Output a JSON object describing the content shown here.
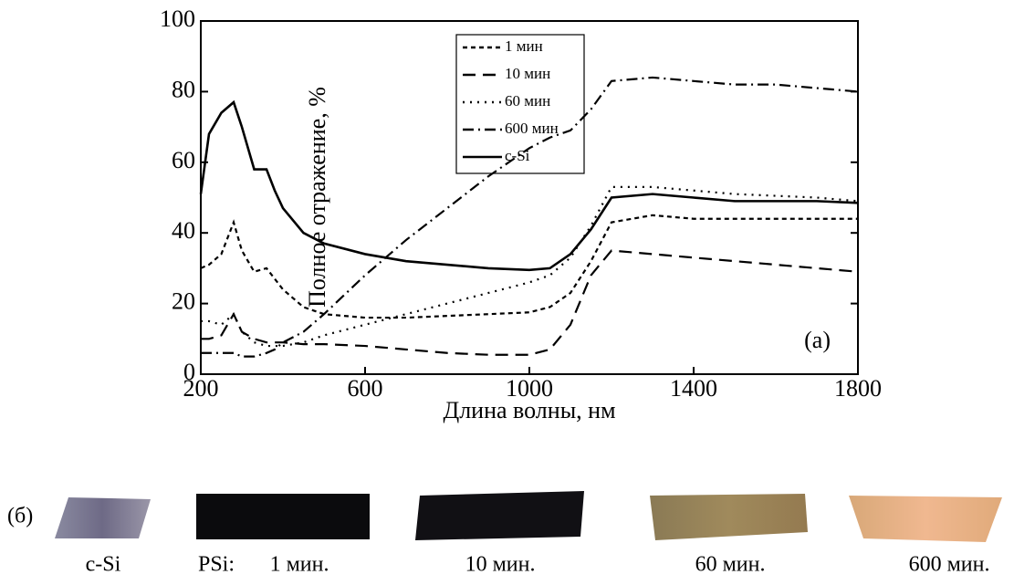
{
  "chart_data": {
    "type": "line",
    "y_label": "Полное отражение, %",
    "x_label": "Длина волны, нм",
    "annotation": "(a)",
    "xlim": [
      200,
      1800
    ],
    "xticks": [
      200,
      600,
      1000,
      1400,
      1800
    ],
    "ylim": [
      0,
      100
    ],
    "yticks": [
      0,
      20,
      40,
      60,
      80,
      100
    ],
    "legend": "top-center",
    "x": [
      200,
      220,
      250,
      280,
      300,
      330,
      360,
      380,
      400,
      450,
      500,
      600,
      700,
      800,
      900,
      1000,
      1050,
      1100,
      1150,
      1200,
      1300,
      1400,
      1500,
      1600,
      1700,
      1800
    ],
    "series": [
      {
        "name": "1 мин",
        "color": "#000000",
        "values": [
          30,
          31,
          34,
          43,
          35,
          29,
          30,
          27,
          24,
          19,
          17,
          16,
          16,
          16.5,
          17,
          17.5,
          19,
          23,
          32,
          43,
          45,
          44,
          44,
          44,
          44,
          44
        ]
      },
      {
        "name": "10 мин",
        "color": "#000000",
        "values": [
          10,
          10,
          11,
          17,
          12,
          10,
          9,
          9,
          9,
          8.5,
          8.5,
          8,
          7,
          6,
          5.5,
          5.5,
          7,
          14,
          28,
          35,
          34,
          33,
          32,
          31,
          30,
          29
        ]
      },
      {
        "name": "60 мин",
        "color": "#000000",
        "values": [
          15,
          15,
          14,
          17,
          12,
          9,
          8,
          8,
          8,
          9,
          11,
          14,
          17,
          20,
          23,
          26,
          28,
          33,
          42,
          53,
          53,
          52,
          51,
          50.5,
          50,
          49
        ]
      },
      {
        "name": "600 мин",
        "color": "#000000",
        "values": [
          6,
          6,
          6,
          6,
          5,
          5,
          6,
          7,
          9,
          12,
          17,
          28,
          38,
          47,
          56,
          64,
          67,
          69,
          75,
          83,
          84,
          83,
          82,
          82,
          81,
          80
        ]
      },
      {
        "name": "c-Si",
        "color": "#000000",
        "values": [
          51,
          68,
          74,
          77,
          70,
          58,
          58,
          52,
          47,
          40,
          37,
          34,
          32,
          31,
          30,
          29.5,
          30,
          34,
          41,
          50,
          51,
          50,
          49,
          49,
          49,
          48.5
        ]
      }
    ],
    "photos": {
      "label": "(б)",
      "prefix": "PSi:",
      "items": [
        "c-Si",
        "1 мин.",
        "10 мин.",
        "60 мин.",
        "600 мин."
      ]
    }
  }
}
